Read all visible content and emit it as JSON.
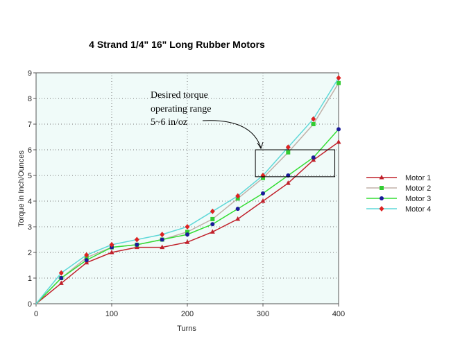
{
  "chart_data": {
    "type": "line",
    "title": "4 Strand 1/4\" 16\" Long Rubber Motors",
    "xlabel": "Turns",
    "ylabel": "Torque in Inch/Ounces",
    "xlim": [
      0,
      400
    ],
    "ylim": [
      0,
      9
    ],
    "xticks": [
      0,
      100,
      200,
      300,
      400
    ],
    "yticks": [
      0,
      1,
      2,
      3,
      4,
      5,
      6,
      7,
      8,
      9
    ],
    "grid": "dotted",
    "legend_position": "right",
    "x": [
      0,
      33.3,
      66.7,
      100,
      133.3,
      166.7,
      200,
      233.3,
      266.7,
      300,
      333.3,
      366.7,
      400
    ],
    "series": [
      {
        "name": "Motor 1",
        "color": "#c0202a",
        "marker": "triangle",
        "values": [
          0,
          0.8,
          1.6,
          2.0,
          2.2,
          2.2,
          2.4,
          2.8,
          3.3,
          4.0,
          4.7,
          5.6,
          6.3
        ]
      },
      {
        "name": "Motor 2",
        "color": "#c0b0a8",
        "markerColor": "#33cc33",
        "marker": "square",
        "values": [
          0,
          1.0,
          1.8,
          2.2,
          2.3,
          2.5,
          2.8,
          3.3,
          4.1,
          4.9,
          5.9,
          7.0,
          8.6
        ]
      },
      {
        "name": "Motor 3",
        "color": "#33dd33",
        "markerColor": "#1a1a99",
        "marker": "circle",
        "values": [
          0,
          1.0,
          1.7,
          2.2,
          2.3,
          2.5,
          2.7,
          3.1,
          3.7,
          4.3,
          5.0,
          5.7,
          6.8
        ]
      },
      {
        "name": "Motor 4",
        "color": "#5fd8d8",
        "markerColor": "#dd2222",
        "marker": "diamond",
        "values": [
          0,
          1.2,
          1.9,
          2.3,
          2.5,
          2.7,
          3.0,
          3.6,
          4.2,
          5.0,
          6.1,
          7.2,
          8.8
        ]
      }
    ],
    "annotation": {
      "lines": [
        "Desired torque",
        "operating range",
        "5~6 in/oz"
      ],
      "box_x": [
        290,
        395
      ],
      "box_y": [
        4.95,
        6.0
      ]
    }
  }
}
